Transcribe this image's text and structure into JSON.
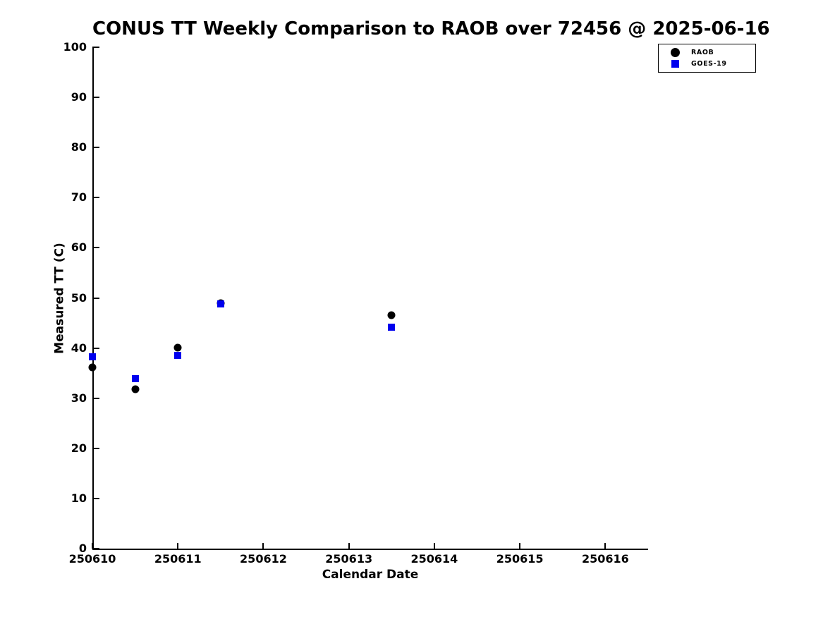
{
  "figure": {
    "title": "CONUS TT Weekly Comparison to RAOB over 72456 @ 2025-06-16"
  },
  "chart_data": {
    "type": "scatter",
    "title": "CONUS TT Weekly Comparison to RAOB over 72456 @ 2025-06-16",
    "xlabel": "Calendar Date",
    "ylabel": "Measured TT (C)",
    "xlim": [
      250610,
      250616.5
    ],
    "ylim": [
      0,
      100
    ],
    "xticks": [
      250610,
      250611,
      250612,
      250613,
      250614,
      250615,
      250616
    ],
    "yticks": [
      0,
      10,
      20,
      30,
      40,
      50,
      60,
      70,
      80,
      90,
      100
    ],
    "grid": false,
    "legend_position": "top-right",
    "series": [
      {
        "name": "RAOB",
        "marker": "circle",
        "color": "#000000",
        "points": [
          [
            250610.0,
            36.1
          ],
          [
            250610.5,
            31.8
          ],
          [
            250611.0,
            40.1
          ],
          [
            250611.5,
            48.9
          ],
          [
            250613.5,
            46.6
          ]
        ]
      },
      {
        "name": "GOES-19",
        "marker": "square",
        "color": "#0000EE",
        "points": [
          [
            250610.0,
            38.3
          ],
          [
            250610.5,
            33.9
          ],
          [
            250611.0,
            38.5
          ],
          [
            250611.5,
            48.8
          ],
          [
            250613.5,
            44.2
          ]
        ]
      }
    ]
  }
}
